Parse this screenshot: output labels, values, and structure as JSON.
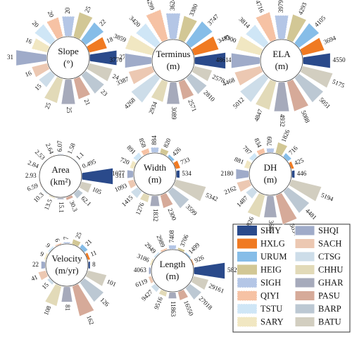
{
  "legend": {
    "items": [
      {
        "name": "SHIY",
        "color": "#2a4a8b"
      },
      {
        "name": "HXLG",
        "color": "#f07a22"
      },
      {
        "name": "URUM",
        "color": "#86bde8"
      },
      {
        "name": "HEIG",
        "color": "#d2c795"
      },
      {
        "name": "SIGH",
        "color": "#b4c6e6"
      },
      {
        "name": "QIYI",
        "color": "#f6c2a4"
      },
      {
        "name": "TSTU",
        "color": "#cfe6f6"
      },
      {
        "name": "SARY",
        "color": "#f1e7c2"
      },
      {
        "name": "SHQI",
        "color": "#9fabc9"
      },
      {
        "name": "SACH",
        "color": "#ecc8b2"
      },
      {
        "name": "CTSG",
        "color": "#cddde9"
      },
      {
        "name": "CHHU",
        "color": "#e2dab8"
      },
      {
        "name": "GHAR",
        "color": "#a6aabb"
      },
      {
        "name": "PASU",
        "color": "#d6aa99"
      },
      {
        "name": "BARP",
        "color": "#bcc8d3"
      },
      {
        "name": "BATU",
        "color": "#d2cec0"
      }
    ]
  },
  "chart_data": [
    {
      "type": "radial-bar",
      "title": "Slope",
      "unit": "(°)",
      "values": [
        27,
        18,
        22,
        25,
        20,
        20,
        20,
        16,
        31,
        16,
        15,
        25,
        25,
        21,
        23,
        24
      ]
    },
    {
      "type": "radial-bar",
      "title": "Terminus",
      "unit": "(m)",
      "values": [
        4327,
        3481,
        3747,
        3380,
        3624,
        4299,
        3420,
        3859,
        3770,
        3387,
        4268,
        2934,
        3089,
        2571,
        2810,
        2578
      ]
    },
    {
      "type": "radial-bar",
      "title": "ELA",
      "unit": "(m)",
      "values": [
        4550,
        3694,
        4105,
        4293,
        3979,
        4716,
        3814,
        4300,
        4861,
        4468,
        5012,
        4847,
        4932,
        5088,
        5051,
        5175
      ]
    },
    {
      "type": "radial-bar",
      "title": "Area",
      "unit": "(km²)",
      "values": [
        311,
        0.495,
        1.1,
        1.58,
        6.07,
        2.64,
        2.53,
        2.84,
        2.93,
        6.59,
        10.3,
        13.5,
        15.1,
        30.3,
        62.1,
        105
      ]
    },
    {
      "type": "radial-bar",
      "title": "Width",
      "unit": "(m)",
      "values": [
        534,
        733,
        426,
        820,
        884,
        858,
        891,
        720,
        1077,
        1093,
        1415,
        1276,
        1832,
        2300,
        3599,
        5342
      ]
    },
    {
      "type": "radial-bar",
      "title": "DH",
      "unit": "(m)",
      "values": [
        446,
        425,
        716,
        1826,
        709,
        834,
        787,
        881,
        2180,
        2162,
        1487,
        3826,
        3685,
        5034,
        4481,
        5194
      ]
    },
    {
      "type": "radial-bar",
      "title": "Velocity",
      "unit": "(m/yr)",
      "values": [
        8,
        11,
        21,
        25,
        7,
        6,
        9,
        9,
        22,
        41,
        15,
        108,
        81,
        162,
        126,
        101
      ]
    },
    {
      "type": "radial-bar",
      "title": "Length",
      "unit": "(m)",
      "values": [
        58298,
        926,
        1499,
        3706,
        7408,
        2989,
        2949,
        3186,
        4063,
        6119,
        9427,
        9516,
        11863,
        16550,
        27018,
        29161
      ]
    }
  ]
}
